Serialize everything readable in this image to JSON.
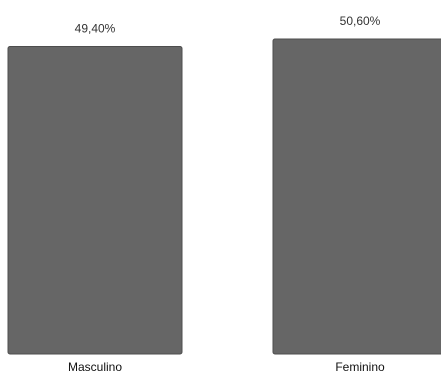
{
  "chart_data": {
    "type": "bar",
    "categories": [
      "Masculino",
      "Feminino"
    ],
    "values": [
      49.4,
      50.6
    ],
    "data_labels": [
      "49,40%",
      "50,60%"
    ],
    "title": "",
    "xlabel": "",
    "ylabel": "",
    "ylim": [
      0,
      50.6
    ],
    "grid": false,
    "legend": "none",
    "colors": {
      "bar": "#666666",
      "bar_edge": "#4d4d4d"
    }
  }
}
